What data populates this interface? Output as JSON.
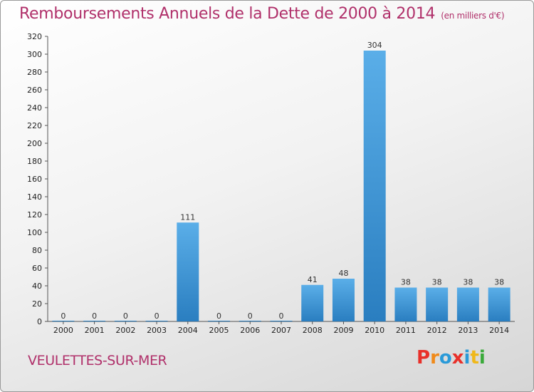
{
  "header": {
    "title": "Remboursements Annuels de la Dette de 2000 à 2014",
    "unit": "(en milliers d'€)"
  },
  "footer": {
    "place": "VEULETTES-SUR-MER",
    "logo": "Proxiti"
  },
  "colors": {
    "title": "#b0306a",
    "bar_light": "#5aaee8",
    "bar_dark": "#2a7ec0",
    "logo_letters": [
      "#e8302a",
      "#f08a1a",
      "#2a9ad8",
      "#e8302a",
      "#2a9ad8",
      "#f0b81a",
      "#3aaa3a"
    ]
  },
  "chart_data": {
    "type": "bar",
    "categories": [
      "2000",
      "2001",
      "2002",
      "2003",
      "2004",
      "2005",
      "2006",
      "2007",
      "2008",
      "2009",
      "2010",
      "2011",
      "2012",
      "2013",
      "2014"
    ],
    "values": [
      0,
      0,
      0,
      0,
      111,
      0,
      0,
      0,
      41,
      48,
      304,
      38,
      38,
      38,
      38
    ],
    "ylim": [
      0,
      320
    ],
    "yticks": [
      0,
      20,
      40,
      60,
      80,
      100,
      120,
      140,
      160,
      180,
      200,
      220,
      240,
      260,
      280,
      300,
      320
    ],
    "grid": false,
    "legend": "none"
  }
}
